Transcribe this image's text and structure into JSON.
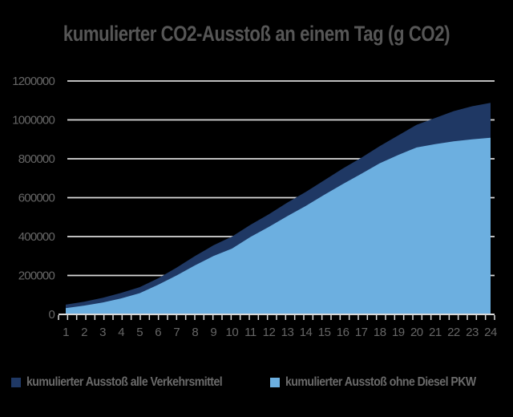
{
  "title": "kumulierter CO2-Ausstoß an einem Tag (g CO2)",
  "colors": {
    "background": "#000000",
    "title_text": "#565656",
    "axis_text": "#666666",
    "gridline": "#d9d9d9",
    "series_total": "#1f3864",
    "series_ohne_diesel": "#6cafe0"
  },
  "legend": {
    "items": [
      {
        "label": "kumulierter Ausstoß alle Verkehrsmittel",
        "color": "#1f3864"
      },
      {
        "label": "kumulierter Ausstoß ohne Diesel PKW",
        "color": "#6cafe0"
      }
    ]
  },
  "chart_data": {
    "type": "area",
    "title": "kumulierter CO2-Ausstoß an einem Tag (g CO2)",
    "xlabel": "",
    "ylabel": "",
    "x": [
      1,
      2,
      3,
      4,
      5,
      6,
      7,
      8,
      9,
      10,
      11,
      12,
      13,
      14,
      15,
      16,
      17,
      18,
      19,
      20,
      21,
      22,
      23,
      24
    ],
    "series": [
      {
        "name": "kumulierter Ausstoß alle Verkehrsmittel",
        "color": "#1f3864",
        "values": [
          50000,
          65000,
          85000,
          110000,
          140000,
          185000,
          240000,
          300000,
          355000,
          400000,
          460000,
          515000,
          575000,
          630000,
          690000,
          750000,
          805000,
          865000,
          920000,
          975000,
          1010000,
          1045000,
          1070000,
          1088000
        ]
      },
      {
        "name": "kumulierter Ausstoß ohne Diesel PKW",
        "color": "#6cafe0",
        "values": [
          32000,
          45000,
          61000,
          82000,
          109000,
          152000,
          200000,
          252000,
          300000,
          338000,
          398000,
          450000,
          505000,
          558000,
          615000,
          670000,
          723000,
          777000,
          820000,
          858000,
          875000,
          890000,
          900000,
          908000
        ]
      }
    ],
    "ylim": [
      0,
      1200000
    ],
    "ytick_interval": 200000,
    "yticks": [
      0,
      200000,
      400000,
      600000,
      800000,
      1000000,
      1200000
    ],
    "xticks": [
      1,
      2,
      3,
      4,
      5,
      6,
      7,
      8,
      9,
      10,
      11,
      12,
      13,
      14,
      15,
      16,
      17,
      18,
      19,
      20,
      21,
      22,
      23,
      24
    ],
    "grid": true,
    "legend_position": "bottom"
  }
}
